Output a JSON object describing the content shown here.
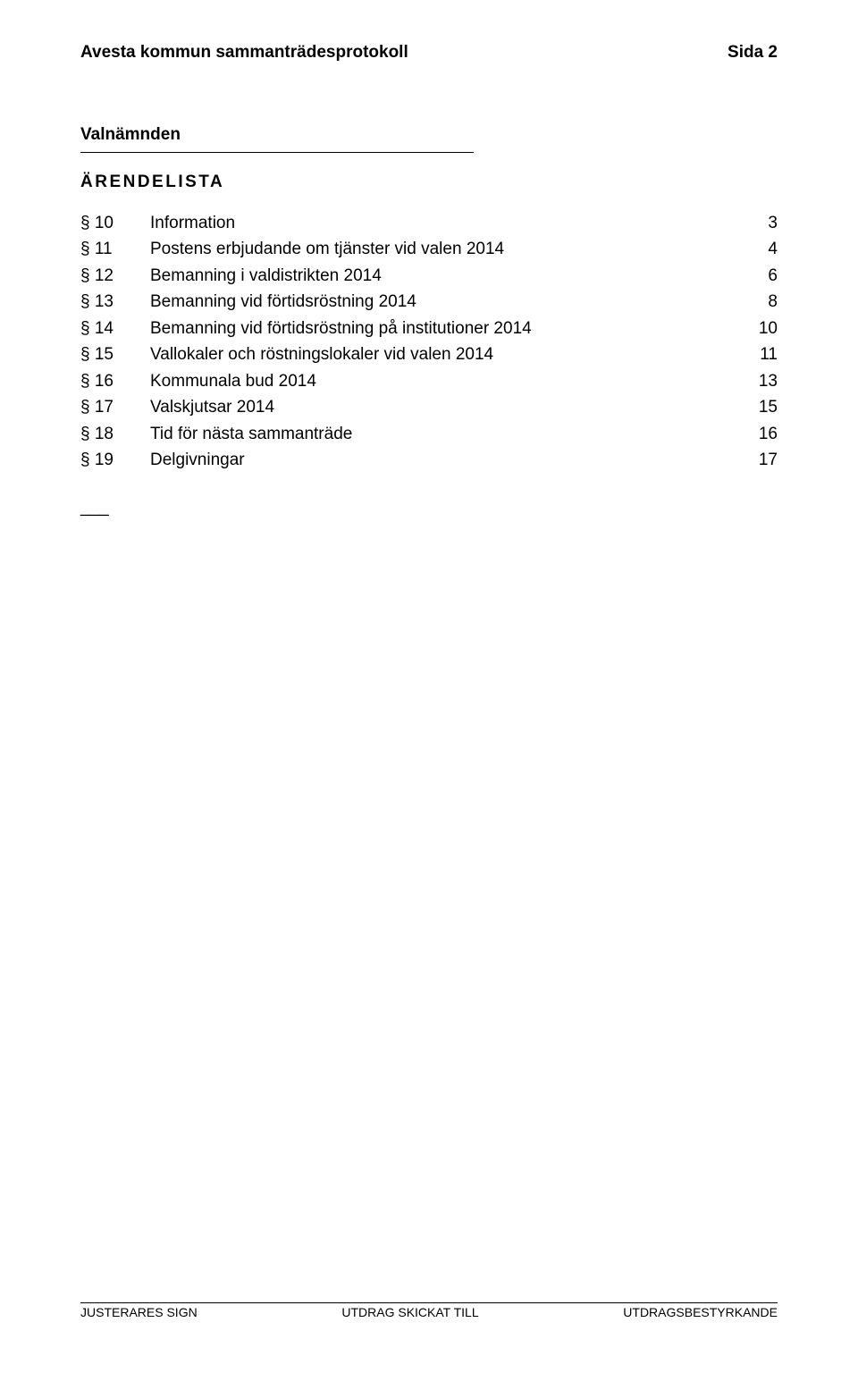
{
  "header": {
    "left": "Avesta kommun sammanträdesprotokoll",
    "right": "Sida 2"
  },
  "section_title": "Valnämnden",
  "toc_title": "ÄRENDELISTA",
  "toc": [
    {
      "num": "§ 10",
      "label": "Information",
      "page": "3"
    },
    {
      "num": "§ 11",
      "label": "Postens erbjudande om tjänster vid valen 2014",
      "page": "4"
    },
    {
      "num": "§ 12",
      "label": "Bemanning i valdistrikten 2014",
      "page": "6"
    },
    {
      "num": "§ 13",
      "label": "Bemanning vid förtidsröstning 2014",
      "page": "8"
    },
    {
      "num": "§ 14",
      "label": "Bemanning vid förtidsröstning på institutioner 2014",
      "page": "10"
    },
    {
      "num": "§ 15",
      "label": "Vallokaler och röstningslokaler vid valen 2014",
      "page": "11"
    },
    {
      "num": "§ 16",
      "label": "Kommunala bud 2014",
      "page": "13"
    },
    {
      "num": "§ 17",
      "label": "Valskjutsar 2014",
      "page": "15"
    },
    {
      "num": "§ 18",
      "label": "Tid för nästa sammanträde",
      "page": "16"
    },
    {
      "num": "§ 19",
      "label": "Delgivningar",
      "page": "17"
    }
  ],
  "end_mark": "___",
  "footer": {
    "left": "JUSTERARES SIGN",
    "center": "UTDRAG SKICKAT TILL",
    "right": "UTDRAGSBESTYRKANDE"
  }
}
